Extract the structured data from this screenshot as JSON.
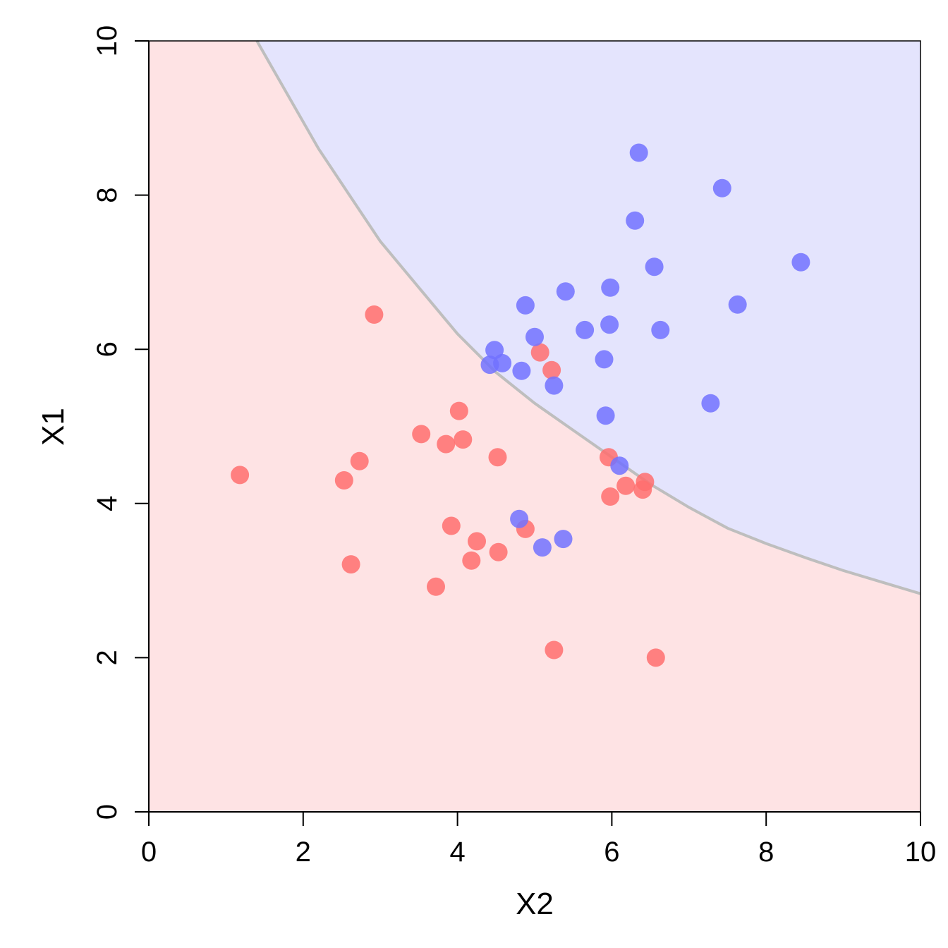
{
  "chart_data": {
    "type": "scatter",
    "xlabel": "X2",
    "ylabel": "X1",
    "xlim": [
      0,
      10
    ],
    "ylim": [
      0,
      10
    ],
    "xticks": [
      "0",
      "2",
      "4",
      "6",
      "8",
      "10"
    ],
    "yticks": [
      "0",
      "2",
      "4",
      "6",
      "8",
      "10"
    ],
    "grid": false,
    "legend": "none",
    "boundary": {
      "description": "decision boundary curve separating the two classes",
      "points": [
        [
          1.4,
          10.0
        ],
        [
          1.8,
          9.3
        ],
        [
          2.2,
          8.6
        ],
        [
          2.6,
          8.0
        ],
        [
          3.0,
          7.4
        ],
        [
          3.5,
          6.8
        ],
        [
          4.0,
          6.2
        ],
        [
          4.5,
          5.7
        ],
        [
          5.0,
          5.3
        ],
        [
          5.5,
          4.95
        ],
        [
          6.0,
          4.6
        ],
        [
          6.5,
          4.25
        ],
        [
          7.0,
          3.95
        ],
        [
          7.5,
          3.68
        ],
        [
          8.0,
          3.48
        ],
        [
          8.5,
          3.3
        ],
        [
          9.0,
          3.13
        ],
        [
          9.5,
          2.98
        ],
        [
          10.0,
          2.83
        ]
      ],
      "color": "#bebebe"
    },
    "regions": [
      {
        "name": "upper-right",
        "color": "#e4e4fd"
      },
      {
        "name": "lower-left",
        "color": "#fee3e4"
      }
    ],
    "series": [
      {
        "color": "#ff6f6f",
        "points": [
          [
            1.18,
            4.37
          ],
          [
            2.53,
            4.3
          ],
          [
            2.62,
            3.21
          ],
          [
            2.73,
            4.55
          ],
          [
            2.92,
            6.45
          ],
          [
            3.53,
            4.9
          ],
          [
            3.72,
            2.92
          ],
          [
            3.85,
            4.77
          ],
          [
            3.92,
            3.71
          ],
          [
            4.02,
            5.2
          ],
          [
            4.07,
            4.83
          ],
          [
            4.18,
            3.26
          ],
          [
            4.25,
            3.51
          ],
          [
            4.52,
            4.6
          ],
          [
            4.53,
            3.37
          ],
          [
            4.88,
            3.67
          ],
          [
            5.07,
            5.96
          ],
          [
            5.22,
            5.73
          ],
          [
            5.25,
            2.1
          ],
          [
            5.96,
            4.6
          ],
          [
            5.98,
            4.09
          ],
          [
            6.18,
            4.23
          ],
          [
            6.4,
            4.18
          ],
          [
            6.43,
            4.28
          ],
          [
            6.57,
            2.0
          ]
        ]
      },
      {
        "color": "#7272ff",
        "points": [
          [
            4.42,
            5.8
          ],
          [
            4.48,
            5.99
          ],
          [
            4.58,
            5.82
          ],
          [
            4.8,
            3.8
          ],
          [
            4.83,
            5.72
          ],
          [
            4.88,
            6.57
          ],
          [
            5.0,
            6.16
          ],
          [
            5.1,
            3.43
          ],
          [
            5.25,
            5.53
          ],
          [
            5.37,
            3.54
          ],
          [
            5.4,
            6.75
          ],
          [
            5.65,
            6.25
          ],
          [
            5.9,
            5.87
          ],
          [
            5.92,
            5.14
          ],
          [
            5.97,
            6.32
          ],
          [
            5.98,
            6.8
          ],
          [
            6.1,
            4.49
          ],
          [
            6.3,
            7.67
          ],
          [
            6.35,
            8.55
          ],
          [
            6.55,
            7.07
          ],
          [
            6.63,
            6.25
          ],
          [
            7.28,
            5.3
          ],
          [
            7.43,
            8.09
          ],
          [
            7.63,
            6.58
          ],
          [
            8.45,
            7.13
          ]
        ]
      }
    ]
  }
}
